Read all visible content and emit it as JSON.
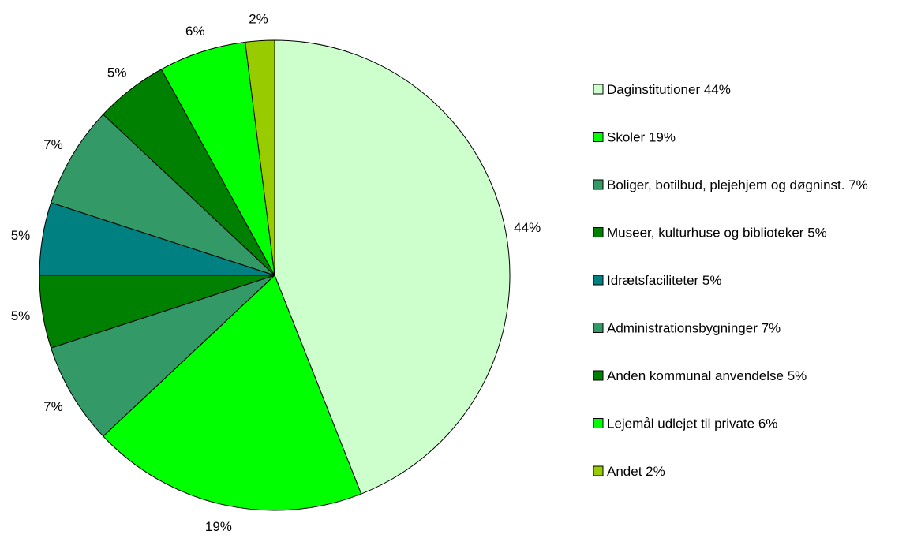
{
  "chart_data": {
    "type": "pie",
    "title": "",
    "start": "top-clockwise",
    "legend_position": "right",
    "slices": [
      {
        "legend_label": "Daginstitutioner 44%",
        "pct_label": "44%",
        "value": 44,
        "color": "#ccffcc"
      },
      {
        "legend_label": "Skoler 19%",
        "pct_label": "19%",
        "value": 19,
        "color": "#00ff00"
      },
      {
        "legend_label": "Boliger, botilbud, plejehjem og døgninst. 7%",
        "pct_label": "7%",
        "value": 7,
        "color": "#339966"
      },
      {
        "legend_label": "Museer, kulturhuse og biblioteker 5%",
        "pct_label": "5%",
        "value": 5,
        "color": "#008000"
      },
      {
        "legend_label": "Idrætsfaciliteter 5%",
        "pct_label": "5%",
        "value": 5,
        "color": "#008080"
      },
      {
        "legend_label": "Administrationsbygninger 7%",
        "pct_label": "7%",
        "value": 7,
        "color": "#339966"
      },
      {
        "legend_label": "Anden kommunal anvendelse 5%",
        "pct_label": "5%",
        "value": 5,
        "color": "#008000"
      },
      {
        "legend_label": "Lejemål udlejet til private 6%",
        "pct_label": "6%",
        "value": 6,
        "color": "#00ff00"
      },
      {
        "legend_label": "Andet 2%",
        "pct_label": "2%",
        "value": 2,
        "color": "#99cc00"
      }
    ]
  }
}
